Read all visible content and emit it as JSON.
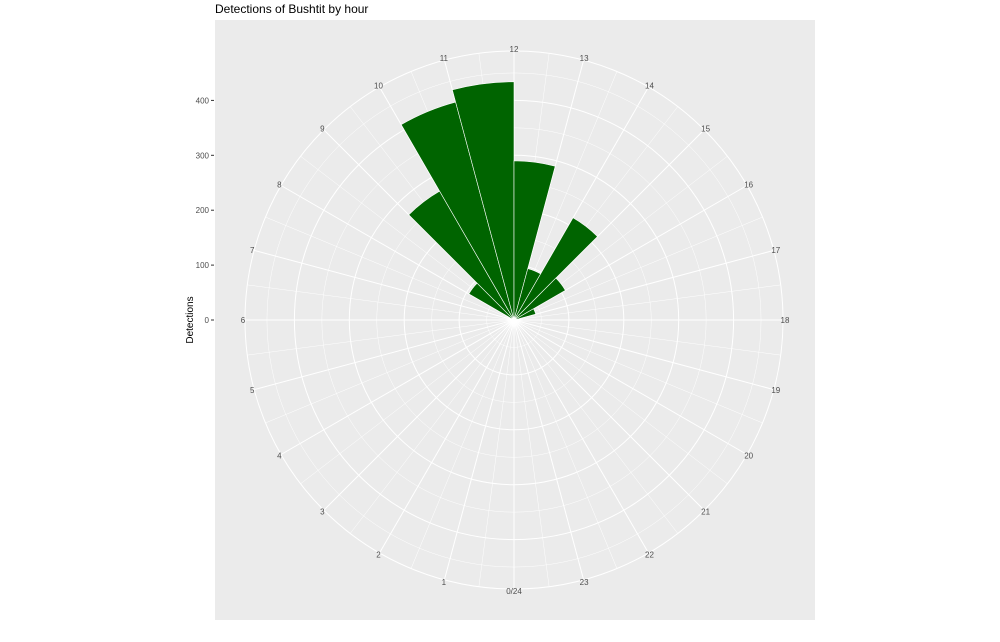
{
  "chart_data": {
    "type": "bar",
    "coord": "polar",
    "title": "Detections of Bushtit by hour",
    "xlabel": "",
    "ylabel": "Detections",
    "categories": [
      0,
      1,
      2,
      3,
      4,
      5,
      6,
      7,
      8,
      9,
      10,
      11,
      12,
      13,
      14,
      15,
      16,
      17,
      18,
      19,
      20,
      21,
      22,
      23
    ],
    "values": [
      0,
      0,
      0,
      0,
      0,
      0,
      0,
      0,
      95,
      271,
      411,
      434,
      290,
      97,
      215,
      108,
      41,
      0,
      0,
      0,
      0,
      0,
      0,
      0
    ],
    "x_tick_labels": [
      "0/24",
      "1",
      "2",
      "3",
      "4",
      "5",
      "6",
      "7",
      "8",
      "9",
      "10",
      "11",
      "12",
      "13",
      "14",
      "15",
      "16",
      "17",
      "18",
      "19",
      "20",
      "21",
      "22",
      "23"
    ],
    "y_ticks": [
      0,
      100,
      200,
      300,
      400
    ],
    "ylim": [
      0,
      490
    ],
    "grid": true,
    "bar_color": "#006400",
    "panel_color": "#EBEBEB",
    "grid_color": "#FFFFFF"
  }
}
